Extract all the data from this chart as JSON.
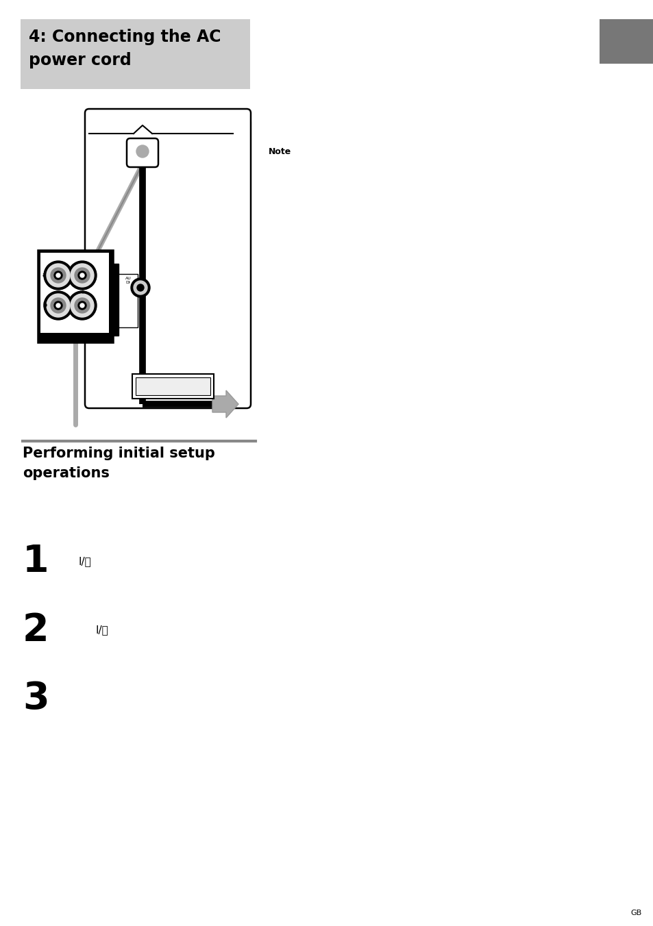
{
  "page_bg": "#ffffff",
  "header_bg": "#cccccc",
  "tab_color": "#777777",
  "section_line_color": "#888888",
  "note_label": "Note",
  "header_text": "4: Connecting the AC\npower cord",
  "section2_title": "Performing initial setup\noperations",
  "step1_num": "1",
  "step2_num": "2",
  "step3_num": "3",
  "gb_text": "GB"
}
